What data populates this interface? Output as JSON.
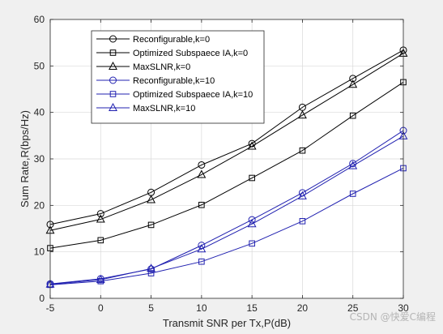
{
  "chart_data": {
    "type": "line",
    "xlabel": "Transmit SNR per Tx,P(dB)",
    "ylabel": "Sum Rate,R(bps/Hz)",
    "xlim": [
      -5,
      30
    ],
    "ylim": [
      0,
      60
    ],
    "xticks": [
      -5,
      0,
      5,
      10,
      15,
      20,
      25,
      30
    ],
    "yticks": [
      0,
      10,
      20,
      30,
      40,
      50,
      60
    ],
    "grid": true,
    "legend_position": "top-left",
    "x": [
      -5,
      0,
      5,
      10,
      15,
      20,
      25,
      30
    ],
    "series": [
      {
        "name": "Reconfigurable,k=0",
        "marker": "circle",
        "color": "#000000",
        "values": [
          15.9,
          18.2,
          22.8,
          28.7,
          33.3,
          41.1,
          47.3,
          53.4
        ]
      },
      {
        "name": "Optimized Subspaece IA,k=0",
        "marker": "square",
        "color": "#000000",
        "values": [
          10.8,
          12.5,
          15.8,
          20.1,
          25.9,
          31.8,
          39.3,
          46.5
        ]
      },
      {
        "name": "MaxSLNR,k=0",
        "marker": "triangle",
        "color": "#000000",
        "values": [
          14.6,
          17.0,
          21.2,
          26.6,
          32.7,
          39.4,
          46.0,
          52.7
        ]
      },
      {
        "name": "Reconfigurable,k=10",
        "marker": "circle",
        "color": "#2020b0",
        "values": [
          3.1,
          4.2,
          6.3,
          11.4,
          16.9,
          22.7,
          29.0,
          36.1
        ]
      },
      {
        "name": "Optimized Subspaece IA,k=10",
        "marker": "square",
        "color": "#2020b0",
        "values": [
          2.9,
          3.7,
          5.4,
          7.9,
          11.8,
          16.6,
          22.5,
          28.0
        ]
      },
      {
        "name": "MaxSLNR,k=10",
        "marker": "triangle",
        "color": "#2020b0",
        "values": [
          3.0,
          4.0,
          6.4,
          10.6,
          16.0,
          22.0,
          28.5,
          34.9
        ]
      }
    ]
  },
  "watermark": "CSDN @快爱C编程"
}
